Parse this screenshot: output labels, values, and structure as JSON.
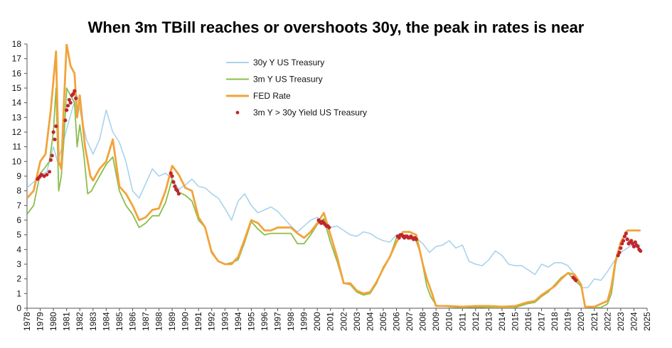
{
  "chart_data": {
    "type": "line",
    "title": "When 3m TBill reaches or overshoots 30y, the peak in rates is near",
    "xlabel": "",
    "ylabel": "",
    "xlim": [
      1978,
      2025
    ],
    "ylim": [
      0,
      18
    ],
    "y_ticks": [
      0,
      1,
      2,
      3,
      4,
      5,
      6,
      7,
      8,
      9,
      10,
      11,
      12,
      13,
      14,
      15,
      16,
      17,
      18
    ],
    "x_ticks": [
      "1978",
      "1979",
      "1980",
      "1981",
      "1982",
      "1983",
      "1984",
      "1985",
      "1986",
      "1987",
      "1988",
      "1989",
      "1990",
      "1991",
      "1992",
      "1993",
      "1994",
      "1995",
      "1996",
      "1997",
      "1998",
      "1999",
      "2000",
      "2001",
      "2002",
      "2003",
      "2004",
      "2005",
      "2006",
      "2007",
      "2008",
      "2009",
      "2010",
      "2011",
      "2012",
      "2013",
      "2014",
      "2015",
      "2016",
      "2017",
      "2018",
      "2019",
      "2020",
      "2021",
      "2022",
      "2023",
      "2024",
      "2025"
    ],
    "legend_position": "top-center",
    "grid": false,
    "series": [
      {
        "name": "30y Y US Treasury",
        "color": "#a9d3ea",
        "x": [
          1978,
          1978.5,
          1979,
          1979.5,
          1980,
          1980.3,
          1980.6,
          1981,
          1981.5,
          1981.8,
          1982,
          1982.5,
          1983,
          1983.5,
          1984,
          1984.5,
          1985,
          1985.5,
          1986,
          1986.5,
          1987,
          1987.5,
          1988,
          1988.5,
          1989,
          1989.5,
          1990,
          1990.5,
          1991,
          1991.5,
          1992,
          1992.5,
          1993,
          1993.5,
          1994,
          1994.5,
          1995,
          1995.5,
          1996,
          1996.5,
          1997,
          1997.5,
          1998,
          1998.5,
          1999,
          1999.5,
          2000,
          2000.5,
          2001,
          2001.5,
          2002,
          2002.5,
          2003,
          2003.5,
          2004,
          2004.5,
          2005,
          2005.5,
          2006,
          2006.5,
          2007,
          2007.5,
          2008,
          2008.5,
          2009,
          2009.5,
          2010,
          2010.5,
          2011,
          2011.5,
          2012,
          2012.5,
          2013,
          2013.5,
          2014,
          2014.5,
          2015,
          2015.5,
          2016,
          2016.5,
          2017,
          2017.5,
          2018,
          2018.5,
          2019,
          2019.5,
          2020,
          2020.5,
          2021,
          2021.5,
          2022,
          2022.5,
          2023,
          2023.5,
          2024,
          2024.5
        ],
        "values": [
          8.2,
          8.6,
          9.0,
          9.3,
          11.0,
          10.0,
          10.8,
          12.2,
          13.8,
          14.5,
          13.5,
          11.5,
          10.5,
          11.5,
          13.5,
          12.0,
          11.3,
          10.0,
          8.0,
          7.5,
          8.5,
          9.5,
          9.0,
          9.2,
          8.8,
          8.1,
          8.4,
          8.8,
          8.3,
          8.2,
          7.8,
          7.5,
          6.8,
          6.0,
          7.3,
          7.8,
          7.0,
          6.5,
          6.7,
          6.9,
          6.6,
          6.1,
          5.6,
          5.2,
          5.6,
          6.0,
          6.2,
          5.8,
          5.5,
          5.6,
          5.3,
          5.0,
          4.9,
          5.2,
          5.1,
          4.8,
          4.6,
          4.5,
          5.0,
          5.0,
          4.8,
          4.8,
          4.4,
          3.8,
          4.2,
          4.3,
          4.6,
          4.1,
          4.3,
          3.2,
          3.0,
          2.9,
          3.3,
          3.9,
          3.6,
          3.0,
          2.9,
          2.9,
          2.6,
          2.3,
          3.0,
          2.8,
          3.1,
          3.1,
          2.9,
          2.3,
          1.4,
          1.4,
          2.0,
          1.9,
          2.5,
          3.2,
          3.8,
          4.1,
          4.4,
          4.3
        ]
      },
      {
        "name": "3m Y US Treasury",
        "color": "#8cbd4c",
        "x": [
          1978,
          1978.5,
          1979,
          1979.3,
          1979.7,
          1980,
          1980.2,
          1980.4,
          1980.6,
          1980.8,
          1981,
          1981.3,
          1981.6,
          1981.8,
          1982,
          1982.3,
          1982.6,
          1982.9,
          1983,
          1983.5,
          1984,
          1984.5,
          1985,
          1985.5,
          1986,
          1986.5,
          1987,
          1987.5,
          1988,
          1988.5,
          1989,
          1989.5,
          1990,
          1990.5,
          1991,
          1991.5,
          1992,
          1992.5,
          1993,
          1993.5,
          1994,
          1994.5,
          1995,
          1995.5,
          1996,
          1996.5,
          1997,
          1997.5,
          1998,
          1998.5,
          1999,
          1999.5,
          2000,
          2000.5,
          2001,
          2001.5,
          2002,
          2002.5,
          2003,
          2003.5,
          2004,
          2004.5,
          2005,
          2005.5,
          2006,
          2006.5,
          2007,
          2007.4,
          2007.8,
          2008,
          2008.3,
          2008.6,
          2009,
          2010,
          2011,
          2012,
          2013,
          2014,
          2015,
          2015.9,
          2016.5,
          2017,
          2017.5,
          2018,
          2018.5,
          2019,
          2019.5,
          2020,
          2020.3,
          2021,
          2021.5,
          2022,
          2022.3,
          2022.6,
          2023,
          2023.5,
          2024,
          2024.5
        ],
        "values": [
          6.4,
          7.0,
          9.2,
          9.5,
          10.0,
          12.0,
          15.0,
          8.0,
          9.0,
          11.5,
          15.0,
          14.5,
          14.0,
          11.0,
          12.5,
          10.5,
          7.8,
          8.0,
          8.2,
          9.0,
          9.8,
          10.3,
          8.0,
          7.0,
          6.4,
          5.5,
          5.8,
          6.3,
          6.3,
          7.2,
          8.8,
          7.9,
          7.7,
          7.3,
          6.0,
          5.5,
          3.9,
          3.2,
          3.0,
          3.1,
          3.3,
          4.5,
          5.9,
          5.4,
          5.0,
          5.1,
          5.1,
          5.1,
          5.1,
          4.4,
          4.4,
          5.0,
          5.7,
          6.1,
          4.5,
          3.2,
          1.7,
          1.6,
          1.1,
          0.9,
          1.0,
          1.7,
          2.8,
          3.5,
          4.8,
          5.0,
          4.9,
          4.8,
          3.8,
          2.9,
          1.5,
          0.8,
          0.2,
          0.1,
          0.05,
          0.08,
          0.05,
          0.03,
          0.05,
          0.3,
          0.4,
          0.8,
          1.1,
          1.6,
          2.1,
          2.4,
          1.9,
          1.5,
          0.1,
          0.05,
          0.05,
          0.3,
          1.0,
          3.0,
          4.5,
          5.3,
          5.3,
          5.3
        ]
      },
      {
        "name": "FED Rate",
        "color": "#f2a33a",
        "x": [
          1978,
          1978.5,
          1979,
          1979.4,
          1979.8,
          1980,
          1980.2,
          1980.4,
          1980.6,
          1980.8,
          1981,
          1981.3,
          1981.6,
          1981.8,
          1982,
          1982.4,
          1982.8,
          1983,
          1983.5,
          1984,
          1984.5,
          1985,
          1985.5,
          1986,
          1986.5,
          1987,
          1987.5,
          1988,
          1988.5,
          1989,
          1989.5,
          1990,
          1990.5,
          1991,
          1991.5,
          1992,
          1992.5,
          1993,
          1993.5,
          1994,
          1994.5,
          1995,
          1995.5,
          1996,
          1996.5,
          1997,
          1997.5,
          1998,
          1998.5,
          1999,
          1999.5,
          2000,
          2000.5,
          2001,
          2001.5,
          2002,
          2002.5,
          2003,
          2003.5,
          2004,
          2004.5,
          2005,
          2005.5,
          2006,
          2006.5,
          2007,
          2007.5,
          2008,
          2008.3,
          2008.7,
          2009,
          2010,
          2011,
          2012,
          2013,
          2014,
          2015,
          2015.9,
          2016.5,
          2017,
          2017.5,
          2018,
          2018.5,
          2019,
          2019.5,
          2020,
          2020.3,
          2021,
          2022,
          2022.3,
          2022.6,
          2023,
          2023.5,
          2024,
          2024.5
        ],
        "values": [
          7.5,
          8.0,
          10.0,
          10.5,
          13.5,
          15.5,
          17.5,
          10.0,
          9.5,
          14.0,
          18.0,
          16.5,
          16.0,
          13.0,
          14.5,
          11.0,
          9.0,
          8.7,
          9.5,
          10.0,
          11.5,
          8.3,
          7.8,
          7.0,
          6.0,
          6.2,
          6.7,
          6.8,
          8.0,
          9.7,
          9.1,
          8.2,
          8.0,
          6.2,
          5.5,
          3.8,
          3.2,
          3.0,
          3.0,
          3.5,
          4.7,
          6.0,
          5.8,
          5.3,
          5.3,
          5.5,
          5.5,
          5.5,
          5.1,
          4.8,
          5.2,
          5.8,
          6.5,
          5.0,
          3.5,
          1.7,
          1.7,
          1.2,
          1.0,
          1.1,
          1.8,
          2.7,
          3.5,
          4.5,
          5.2,
          5.2,
          5.0,
          3.0,
          2.0,
          1.0,
          0.15,
          0.15,
          0.1,
          0.15,
          0.15,
          0.1,
          0.15,
          0.4,
          0.5,
          0.9,
          1.2,
          1.5,
          2.0,
          2.4,
          2.3,
          1.6,
          0.1,
          0.1,
          0.5,
          1.5,
          3.2,
          4.5,
          5.3,
          5.3,
          5.3
        ]
      },
      {
        "name": "3m Y > 30y Yield US Treasury",
        "color": "#c0272d",
        "type": "scatter",
        "x": [
          1978.8,
          1978.9,
          1979.0,
          1979.1,
          1979.3,
          1979.5,
          1979.7,
          1979.8,
          1979.9,
          1980.0,
          1980.1,
          1980.2,
          1980.9,
          1981.0,
          1981.1,
          1981.2,
          1981.3,
          1981.4,
          1981.5,
          1981.6,
          1981.7,
          1988.9,
          1989.0,
          1989.1,
          1989.2,
          1989.3,
          1989.4,
          1989.5,
          2000.1,
          2000.2,
          2000.3,
          2000.4,
          2000.5,
          2000.6,
          2000.7,
          2000.8,
          2000.9,
          2006.1,
          2006.2,
          2006.3,
          2006.4,
          2006.5,
          2006.6,
          2006.7,
          2006.8,
          2006.9,
          2007.0,
          2007.1,
          2007.2,
          2007.3,
          2007.4,
          2007.5,
          2019.4,
          2019.5,
          2019.6,
          2022.8,
          2022.9,
          2023.0,
          2023.1,
          2023.2,
          2023.3,
          2023.4,
          2023.5,
          2023.6,
          2023.7,
          2023.8,
          2023.9,
          2024.0,
          2024.1,
          2024.2,
          2024.3,
          2024.4,
          2024.5
        ],
        "values": [
          8.8,
          8.9,
          9.0,
          9.1,
          9.0,
          9.1,
          9.3,
          10.1,
          10.4,
          12.0,
          11.5,
          12.4,
          12.8,
          13.5,
          13.8,
          14.2,
          14.0,
          14.5,
          14.6,
          14.8,
          14.3,
          9.2,
          9.0,
          8.6,
          8.3,
          8.1,
          8.0,
          7.8,
          6.0,
          5.9,
          5.8,
          5.9,
          5.8,
          5.7,
          5.6,
          5.6,
          5.5,
          4.9,
          4.8,
          5.0,
          5.0,
          4.9,
          4.8,
          4.9,
          4.9,
          4.8,
          4.8,
          4.9,
          4.8,
          4.7,
          4.8,
          4.7,
          2.1,
          2.0,
          1.9,
          3.6,
          3.8,
          4.1,
          4.4,
          4.6,
          4.9,
          5.1,
          4.7,
          4.4,
          4.5,
          4.6,
          4.4,
          4.2,
          4.5,
          4.3,
          4.2,
          4.0,
          3.9
        ]
      }
    ]
  }
}
